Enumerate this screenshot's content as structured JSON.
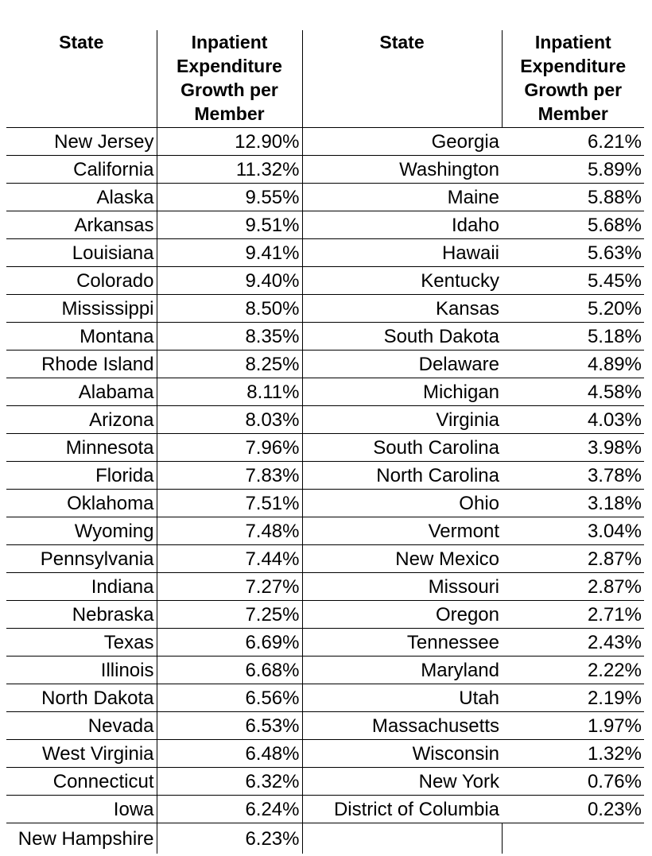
{
  "table": {
    "headers": [
      "State",
      "Inpatient Expenditure Growth per Member",
      "State",
      "Inpatient Expenditure Growth per Member"
    ],
    "rows": [
      [
        "New Jersey",
        "12.90%",
        "Georgia",
        "6.21%"
      ],
      [
        "California",
        "11.32%",
        "Washington",
        "5.89%"
      ],
      [
        "Alaska",
        "9.55%",
        "Maine",
        "5.88%"
      ],
      [
        "Arkansas",
        "9.51%",
        "Idaho",
        "5.68%"
      ],
      [
        "Louisiana",
        "9.41%",
        "Hawaii",
        "5.63%"
      ],
      [
        "Colorado",
        "9.40%",
        "Kentucky",
        "5.45%"
      ],
      [
        "Mississippi",
        "8.50%",
        "Kansas",
        "5.20%"
      ],
      [
        "Montana",
        "8.35%",
        "South Dakota",
        "5.18%"
      ],
      [
        "Rhode Island",
        "8.25%",
        "Delaware",
        "4.89%"
      ],
      [
        "Alabama",
        "8.11%",
        "Michigan",
        "4.58%"
      ],
      [
        "Arizona",
        "8.03%",
        "Virginia",
        "4.03%"
      ],
      [
        "Minnesota",
        "7.96%",
        "South Carolina",
        "3.98%"
      ],
      [
        "Florida",
        "7.83%",
        "North Carolina",
        "3.78%"
      ],
      [
        "Oklahoma",
        "7.51%",
        "Ohio",
        "3.18%"
      ],
      [
        "Wyoming",
        "7.48%",
        "Vermont",
        "3.04%"
      ],
      [
        "Pennsylvania",
        "7.44%",
        "New Mexico",
        "2.87%"
      ],
      [
        "Indiana",
        "7.27%",
        "Missouri",
        "2.87%"
      ],
      [
        "Nebraska",
        "7.25%",
        "Oregon",
        "2.71%"
      ],
      [
        "Texas",
        "6.69%",
        "Tennessee",
        "2.43%"
      ],
      [
        "Illinois",
        "6.68%",
        "Maryland",
        "2.22%"
      ],
      [
        "North Dakota",
        "6.56%",
        "Utah",
        "2.19%"
      ],
      [
        "Nevada",
        "6.53%",
        "Massachusetts",
        "1.97%"
      ],
      [
        "West Virginia",
        "6.48%",
        "Wisconsin",
        "1.32%"
      ],
      [
        "Connecticut",
        "6.32%",
        "New York",
        "0.76%"
      ],
      [
        "Iowa",
        "6.24%",
        "District of Columbia",
        "0.23%"
      ],
      [
        "New Hampshire",
        "6.23%",
        "",
        ""
      ]
    ]
  }
}
